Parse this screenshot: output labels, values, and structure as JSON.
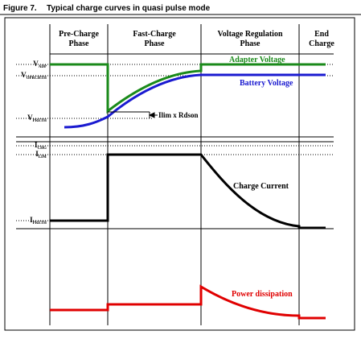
{
  "header": {
    "figure": "Figure 7.",
    "title": "Typical charge curves in quasi pulse mode"
  },
  "phases": [
    {
      "line1": "Pre-Charge",
      "line2": "Phase"
    },
    {
      "line1": "Fast-Charge",
      "line2": "Phase"
    },
    {
      "line1": "Voltage Regulation",
      "line2": "Phase"
    },
    {
      "line1": "End",
      "line2": "Charge"
    }
  ],
  "levels": [
    {
      "main": "V",
      "sub": "ADP"
    },
    {
      "main": "V",
      "sub": "OPRCHTH"
    },
    {
      "main": "V",
      "sub": "PRETH"
    },
    {
      "main": "I",
      "sub": "CHG"
    },
    {
      "main": "I",
      "sub": "LIM"
    },
    {
      "main": "I",
      "sub": "PRETH"
    }
  ],
  "annotations": {
    "ilim": "Ilim x Rdson",
    "adapter": "Adapter Voltage",
    "battery": "Battery Voltage",
    "current": "Charge Current",
    "power": "Power dissipation"
  }
}
